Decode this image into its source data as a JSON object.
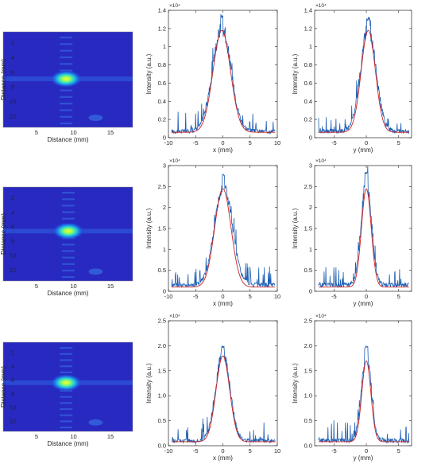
{
  "figure": {
    "rows": [
      {
        "heatmap": {
          "xlabel": "Distance (mm)",
          "ylabel": "Distance (mm)",
          "xticks": [
            5,
            10,
            15
          ],
          "yticks": [
            2,
            4,
            6,
            8,
            10,
            12
          ],
          "xlim": [
            0.5,
            18
          ],
          "ylim": [
            0.5,
            13.5
          ],
          "spot": {
            "x": 9.0,
            "y": 6.9
          },
          "fringes": true
        },
        "xprofile": {
          "xlabel": "x (mm)",
          "ylabel": "Intensity (a.u.)",
          "exponent": "×10⁴",
          "xticks": [
            -10,
            -5,
            0,
            5,
            10
          ],
          "yticks": [
            0,
            0.2,
            0.4,
            0.6,
            0.8,
            1,
            1.2,
            1.4
          ],
          "xlim": [
            -10,
            10
          ],
          "ylim": [
            0,
            1.4
          ],
          "ytick_labels": [
            "0",
            "0.2",
            "0.4",
            "0.6",
            "0.8",
            "1",
            "1.2",
            "1.4"
          ]
        },
        "yprofile": {
          "xlabel": "y (mm)",
          "ylabel": "Intensity (a.u.)",
          "exponent": "×10⁴",
          "xticks": [
            -5,
            0,
            5
          ],
          "yticks": [
            0,
            0.2,
            0.4,
            0.6,
            0.8,
            1,
            1.2,
            1.4
          ],
          "xlim": [
            -8,
            7
          ],
          "ylim": [
            0,
            1.4
          ],
          "ytick_labels": [
            "0",
            "0.2",
            "0.4",
            "0.6",
            "0.8",
            "1",
            "1.2",
            "1.4"
          ]
        }
      },
      {
        "heatmap": {
          "xlabel": "Distance (mm)",
          "ylabel": "Distance (mm)",
          "xticks": [
            5,
            10,
            15
          ],
          "yticks": [
            2,
            4,
            6,
            8,
            10,
            12
          ],
          "xlim": [
            0.5,
            18
          ],
          "ylim": [
            0.5,
            13.5
          ],
          "spot": {
            "x": 9.3,
            "y": 6.6
          },
          "fringes": true
        },
        "xprofile": {
          "xlabel": "x (mm)",
          "ylabel": "Intensity (a.u.)",
          "exponent": "×10⁴",
          "xticks": [
            -10,
            -5,
            0,
            5,
            10
          ],
          "yticks": [
            0,
            0.5,
            1,
            1.5,
            2,
            2.5,
            3
          ],
          "xlim": [
            -10,
            10
          ],
          "ylim": [
            0,
            3
          ],
          "ytick_labels": [
            "0",
            "0.5",
            "1",
            "1.5",
            "2",
            "2.5",
            "3"
          ]
        },
        "yprofile": {
          "xlabel": "y (mm)",
          "ylabel": "Intensity (a.u.)",
          "exponent": "×10⁴",
          "xticks": [
            -5,
            0,
            5
          ],
          "yticks": [
            0,
            0.5,
            1,
            1.5,
            2,
            2.5,
            3
          ],
          "xlim": [
            -8,
            7
          ],
          "ylim": [
            0,
            3
          ],
          "ytick_labels": [
            "0",
            "0.5",
            "1",
            "1.5",
            "2",
            "2.5",
            "3"
          ]
        }
      },
      {
        "heatmap": {
          "xlabel": "Distance (mm)",
          "ylabel": "Distance (mm)",
          "xticks": [
            5,
            10,
            15
          ],
          "yticks": [
            2,
            4,
            6,
            8,
            10,
            12
          ],
          "xlim": [
            0.5,
            18
          ],
          "ylim": [
            0.5,
            13.5
          ],
          "spot": {
            "x": 9.0,
            "y": 6.4
          },
          "fringes": true
        },
        "xprofile": {
          "xlabel": "x (mm)",
          "ylabel": "Intensity (a.u.)",
          "exponent": "×10⁴",
          "xticks": [
            -10,
            -5,
            0,
            5,
            10
          ],
          "yticks": [
            0,
            0.5,
            1,
            1.5,
            2,
            2.5
          ],
          "xlim": [
            -10,
            10
          ],
          "ylim": [
            0,
            2.5
          ],
          "ytick_labels": [
            "0.0",
            "0.5",
            "1.0",
            "1.5",
            "2.0",
            "2.5"
          ]
        },
        "yprofile": {
          "xlabel": "y (mm)",
          "ylabel": "Intensity (a.u.)",
          "exponent": "×10⁴",
          "xticks": [
            -5,
            0,
            5
          ],
          "yticks": [
            0,
            0.5,
            1,
            1.5,
            2,
            2.5
          ],
          "xlim": [
            -8,
            7
          ],
          "ylim": [
            0,
            2.5
          ],
          "ytick_labels": [
            "0.0",
            "0.5",
            "1.0",
            "1.5",
            "2.0",
            "2.5"
          ]
        }
      }
    ]
  },
  "chart_data": [
    {
      "type": "heatmap",
      "panel": "row1-image",
      "xlabel": "Distance (mm)",
      "ylabel": "Distance (mm)",
      "xlim": [
        0.5,
        18
      ],
      "ylim": [
        0.5,
        13.5
      ],
      "peak_position_mm": [
        9.0,
        6.9
      ]
    },
    {
      "type": "line",
      "panel": "row1-x-profile",
      "xlabel": "x (mm)",
      "ylabel": "Intensity (a.u.)",
      "y_multiplier": "×10⁴",
      "series": [
        {
          "name": "",
          "kind": "measured",
          "color": "#1f5fb4",
          "baseline": 0.07,
          "peak": 1.2,
          "center": -0.2,
          "sigma": 1.7,
          "peak_max": 1.36
        },
        {
          "name": "",
          "kind": "fit",
          "color": "#cc2222",
          "baseline": 0.06,
          "peak": 1.18,
          "center": -0.2,
          "sigma": 1.6
        }
      ]
    },
    {
      "type": "line",
      "panel": "row1-y-profile",
      "xlabel": "y (mm)",
      "ylabel": "Intensity (a.u.)",
      "y_multiplier": "×10⁴",
      "series": [
        {
          "name": "",
          "kind": "measured",
          "color": "#1f5fb4",
          "baseline": 0.07,
          "peak": 1.2,
          "center": 0.3,
          "sigma": 1.2,
          "peak_max": 1.33
        },
        {
          "name": "",
          "kind": "fit",
          "color": "#cc2222",
          "baseline": 0.06,
          "peak": 1.18,
          "center": 0.3,
          "sigma": 1.1
        }
      ]
    },
    {
      "type": "line",
      "panel": "row2-x-profile",
      "xlabel": "x (mm)",
      "ylabel": "Intensity (a.u.)",
      "y_multiplier": "×10⁴",
      "series": [
        {
          "name": "",
          "kind": "measured",
          "color": "#1f5fb4",
          "baseline": 0.15,
          "peak": 2.55,
          "center": 0.1,
          "sigma": 1.6,
          "peak_max": 2.8
        },
        {
          "name": "",
          "kind": "fit",
          "color": "#cc2222",
          "baseline": 0.1,
          "peak": 2.45,
          "center": 0.0,
          "sigma": 1.5
        }
      ]
    },
    {
      "type": "line",
      "panel": "row2-y-profile",
      "xlabel": "y (mm)",
      "ylabel": "Intensity (a.u.)",
      "y_multiplier": "×10⁴",
      "series": [
        {
          "name": "",
          "kind": "measured",
          "color": "#1f5fb4",
          "baseline": 0.15,
          "peak": 2.6,
          "center": 0.0,
          "sigma": 0.8,
          "peak_max": 2.85
        },
        {
          "name": "",
          "kind": "fit",
          "color": "#cc2222",
          "baseline": 0.1,
          "peak": 2.45,
          "center": 0.0,
          "sigma": 0.75
        }
      ]
    },
    {
      "type": "line",
      "panel": "row3-x-profile",
      "xlabel": "x (mm)",
      "ylabel": "Intensity (a.u.)",
      "y_multiplier": "×10⁴",
      "series": [
        {
          "name": "",
          "kind": "measured",
          "color": "#1f5fb4",
          "baseline": 0.1,
          "peak": 1.85,
          "center": 0.0,
          "sigma": 1.3,
          "peak_max": 2.0
        },
        {
          "name": "",
          "kind": "fit",
          "color": "#cc2222",
          "baseline": 0.08,
          "peak": 1.8,
          "center": 0.0,
          "sigma": 1.25
        }
      ]
    },
    {
      "type": "line",
      "panel": "row3-y-profile",
      "xlabel": "y (mm)",
      "ylabel": "Intensity (a.u.)",
      "y_multiplier": "×10⁴",
      "series": [
        {
          "name": "",
          "kind": "measured",
          "color": "#1f5fb4",
          "baseline": 0.1,
          "peak": 1.8,
          "center": 0.0,
          "sigma": 0.75,
          "peak_max": 2.0
        },
        {
          "name": "",
          "kind": "fit",
          "color": "#cc2222",
          "baseline": 0.08,
          "peak": 1.7,
          "center": 0.0,
          "sigma": 0.7
        }
      ]
    }
  ]
}
